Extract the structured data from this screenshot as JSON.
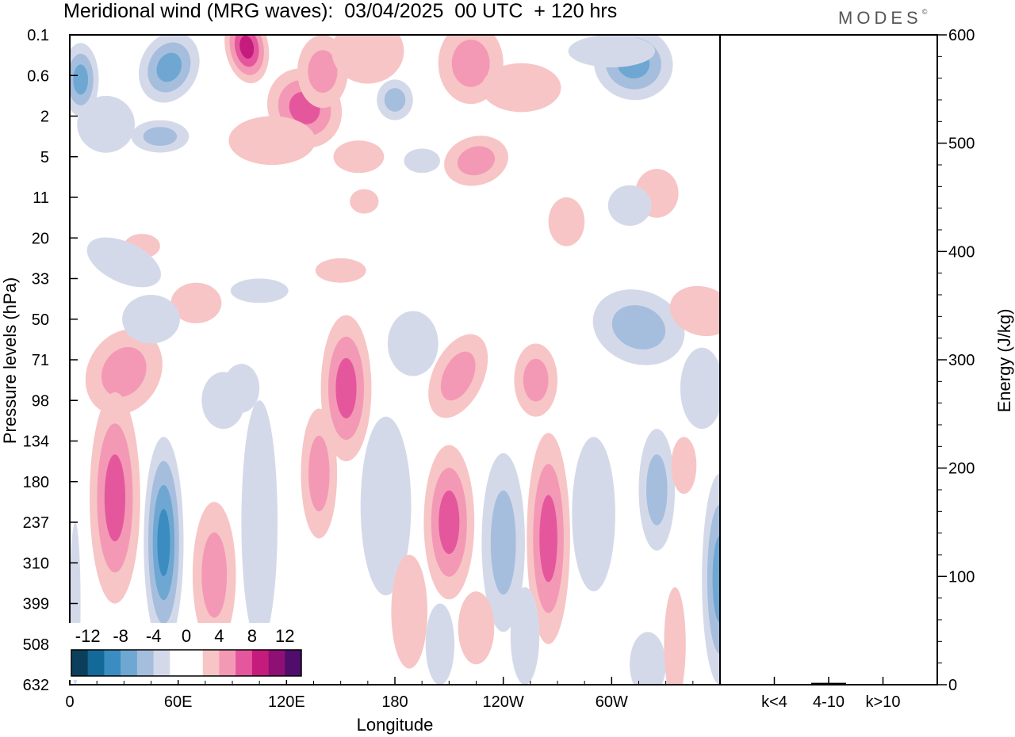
{
  "title": "Meridional wind (MRG waves):  03/04/2025  00 UTC  + 120 hrs",
  "brand": "MODES",
  "brand_mark": "©",
  "colors": {
    "neg": [
      "#0c3f5c",
      "#136a99",
      "#3b8cc0",
      "#6ea7d2",
      "#a6bedd",
      "#d4d9ea"
    ],
    "pos": [
      "#f7c5c5",
      "#f399b5",
      "#e5579c",
      "#c51b7d",
      "#8e1074",
      "#4f0e6b"
    ],
    "white": "#ffffff"
  },
  "chart_data": [
    {
      "type": "heatmap",
      "title": "Meridional wind (MRG waves)",
      "xlabel": "Longitude",
      "ylabel": "Pressure levels (hPa)",
      "x_ticks": [
        "0",
        "60E",
        "120E",
        "180",
        "120W",
        "60W"
      ],
      "x_tick_values": [
        0,
        60,
        120,
        180,
        240,
        300
      ],
      "xlim": [
        0,
        360
      ],
      "y_ticks": [
        "0.1",
        "0.6",
        "2",
        "5",
        "11",
        "20",
        "33",
        "50",
        "71",
        "98",
        "134",
        "180",
        "237",
        "310",
        "399",
        "508",
        "632"
      ],
      "colorbar": {
        "labels": [
          "-12",
          "-8",
          "-4",
          "0",
          "4",
          "8",
          "12"
        ],
        "levels": [
          -14,
          -12,
          -10,
          -8,
          -6,
          -4,
          -2,
          2,
          4,
          6,
          8,
          10,
          12,
          14
        ]
      },
      "features": [
        {
          "lon": 98,
          "p_index": 0.2,
          "value": 12
        },
        {
          "lon": 5,
          "p_index": 1.0,
          "value": -8
        },
        {
          "lon": 55,
          "p_index": 0.8,
          "value": -6
        },
        {
          "lon": 310,
          "p_index": 0.7,
          "value": -8
        },
        {
          "lon": 130,
          "p_index": 2.0,
          "value": 8
        },
        {
          "lon": 222,
          "p_index": 0.6,
          "value": 6
        },
        {
          "lon": 25,
          "p_index": 11.2,
          "value": 8
        },
        {
          "lon": 52,
          "p_index": 12.5,
          "value": -10
        },
        {
          "lon": 210,
          "p_index": 12.0,
          "value": 8
        },
        {
          "lon": 265,
          "p_index": 12.0,
          "value": 8
        },
        {
          "lon": 155,
          "p_index": 8.4,
          "value": 6
        },
        {
          "lon": 248,
          "p_index": 12.0,
          "value": -6
        },
        {
          "lon": 360,
          "p_index": 13.5,
          "value": -6
        }
      ]
    },
    {
      "type": "bar",
      "ylabel": "Energy (J/kg)",
      "categories": [
        "k<4",
        "4-10",
        "k>10"
      ],
      "values": [
        0,
        1,
        0
      ],
      "y_ticks": [
        "0",
        "100",
        "200",
        "300",
        "400",
        "500",
        "600"
      ],
      "ylim": [
        0,
        600
      ]
    }
  ]
}
